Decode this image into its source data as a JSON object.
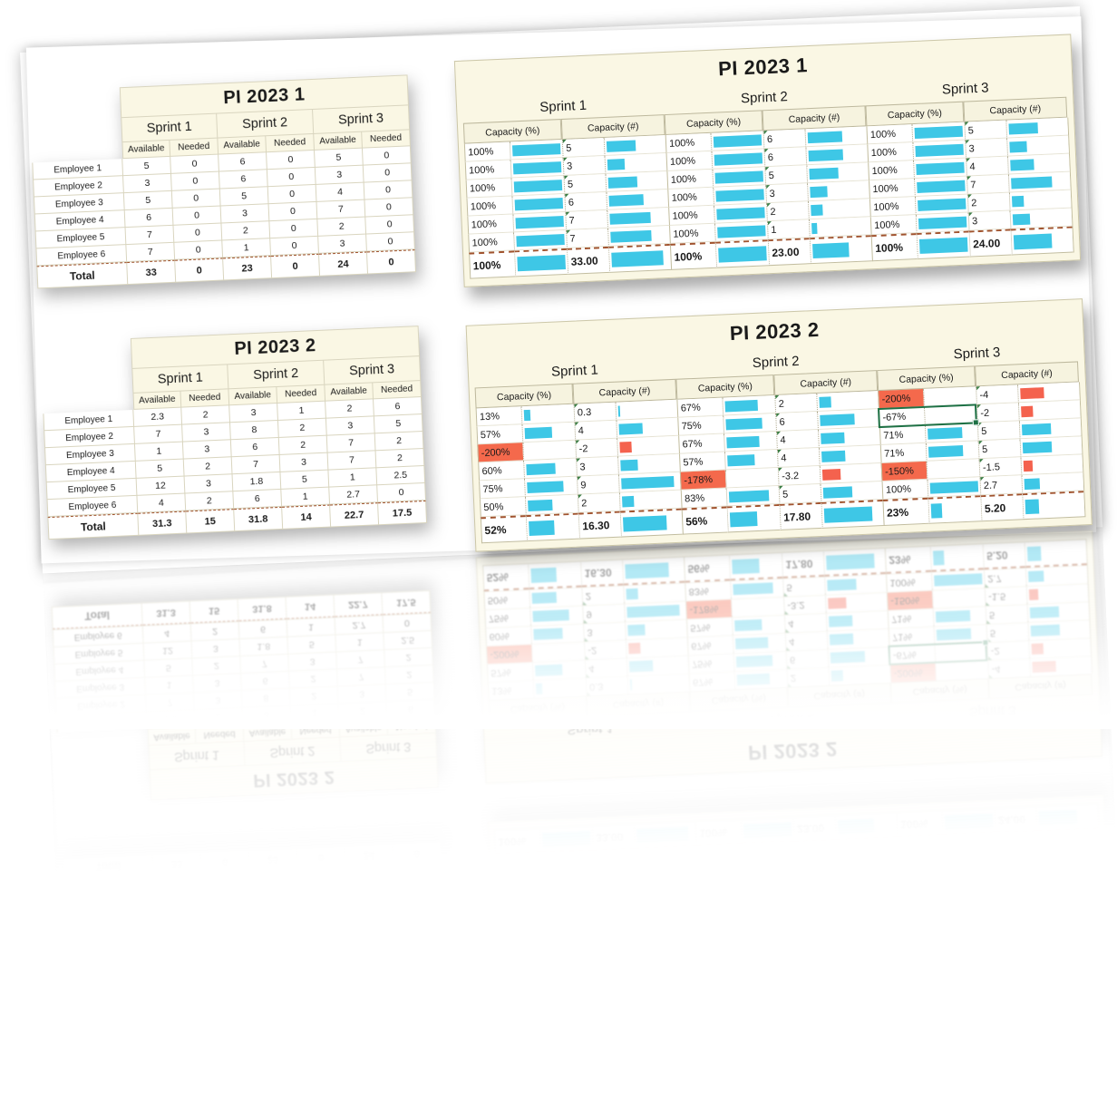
{
  "colors": {
    "bar_positive": "#3EC7E6",
    "bar_negative": "#F4624E",
    "negative_fill": "#F4694C",
    "selection_green": "#1E7145"
  },
  "panels": [
    {
      "kind": "plan",
      "title": "PI 2023 1",
      "sprints": [
        "Sprint 1",
        "Sprint 2",
        "Sprint 3"
      ],
      "subheaders": [
        "Available",
        "Needed"
      ],
      "employees": [
        "Employee 1",
        "Employee 2",
        "Employee 3",
        "Employee 4",
        "Employee 5",
        "Employee 6"
      ],
      "rows": [
        [
          "5",
          "0",
          "6",
          "0",
          "5",
          "0"
        ],
        [
          "3",
          "0",
          "6",
          "0",
          "3",
          "0"
        ],
        [
          "5",
          "0",
          "5",
          "0",
          "4",
          "0"
        ],
        [
          "6",
          "0",
          "3",
          "0",
          "7",
          "0"
        ],
        [
          "7",
          "0",
          "2",
          "0",
          "2",
          "0"
        ],
        [
          "7",
          "0",
          "1",
          "0",
          "3",
          "0"
        ]
      ],
      "total_label": "Total",
      "totals": [
        "33",
        "0",
        "23",
        "0",
        "24",
        "0"
      ]
    },
    {
      "kind": "capacity",
      "title": "PI 2023 1",
      "sprints": [
        "Sprint 1",
        "Sprint 2",
        "Sprint 3"
      ],
      "subheaders": [
        "Capacity (%)",
        "Capacity (#)"
      ],
      "rows": [
        [
          [
            "100%",
            "5"
          ],
          [
            "100%",
            "6"
          ],
          [
            "100%",
            "5"
          ]
        ],
        [
          [
            "100%",
            "3"
          ],
          [
            "100%",
            "6"
          ],
          [
            "100%",
            "3"
          ]
        ],
        [
          [
            "100%",
            "5"
          ],
          [
            "100%",
            "5"
          ],
          [
            "100%",
            "4"
          ]
        ],
        [
          [
            "100%",
            "6"
          ],
          [
            "100%",
            "3"
          ],
          [
            "100%",
            "7"
          ]
        ],
        [
          [
            "100%",
            "7"
          ],
          [
            "100%",
            "2"
          ],
          [
            "100%",
            "2"
          ]
        ],
        [
          [
            "100%",
            "7"
          ],
          [
            "100%",
            "1"
          ],
          [
            "100%",
            "3"
          ]
        ]
      ],
      "totals": [
        [
          "100%",
          "33.00"
        ],
        [
          "100%",
          "23.00"
        ],
        [
          "100%",
          "24.00"
        ]
      ]
    },
    {
      "kind": "plan",
      "title": "PI 2023 2",
      "sprints": [
        "Sprint 1",
        "Sprint 2",
        "Sprint 3"
      ],
      "subheaders": [
        "Available",
        "Needed"
      ],
      "employees": [
        "Employee 1",
        "Employee 2",
        "Employee 3",
        "Employee 4",
        "Employee 5",
        "Employee 6"
      ],
      "rows": [
        [
          "2.3",
          "2",
          "3",
          "1",
          "2",
          "6"
        ],
        [
          "7",
          "3",
          "8",
          "2",
          "3",
          "5"
        ],
        [
          "1",
          "3",
          "6",
          "2",
          "7",
          "2"
        ],
        [
          "5",
          "2",
          "7",
          "3",
          "7",
          "2"
        ],
        [
          "12",
          "3",
          "1.8",
          "5",
          "1",
          "2.5"
        ],
        [
          "4",
          "2",
          "6",
          "1",
          "2.7",
          "0"
        ]
      ],
      "total_label": "Total",
      "totals": [
        "31.3",
        "15",
        "31.8",
        "14",
        "22.7",
        "17.5"
      ]
    },
    {
      "kind": "capacity",
      "title": "PI 2023 2",
      "sprints": [
        "Sprint 1",
        "Sprint 2",
        "Sprint 3"
      ],
      "subheaders": [
        "Capacity (%)",
        "Capacity (#)"
      ],
      "rows": [
        [
          [
            "13%",
            "0.3"
          ],
          [
            "67%",
            "2"
          ],
          [
            "-200%",
            "-4"
          ]
        ],
        [
          [
            "57%",
            "4"
          ],
          [
            "75%",
            "6"
          ],
          [
            "-67%",
            "-2"
          ]
        ],
        [
          [
            "-200%",
            "-2"
          ],
          [
            "67%",
            "4"
          ],
          [
            "71%",
            "5"
          ]
        ],
        [
          [
            "60%",
            "3"
          ],
          [
            "57%",
            "4"
          ],
          [
            "71%",
            "5"
          ]
        ],
        [
          [
            "75%",
            "9"
          ],
          [
            "-178%",
            "-3.2"
          ],
          [
            "-150%",
            "-1.5"
          ]
        ],
        [
          [
            "50%",
            "2"
          ],
          [
            "83%",
            "5"
          ],
          [
            "100%",
            "2.7"
          ]
        ]
      ],
      "totals": [
        [
          "52%",
          "16.30"
        ],
        [
          "56%",
          "17.80"
        ],
        [
          "23%",
          "5.20"
        ]
      ],
      "selected_cell": {
        "row": 1,
        "sprint": 2
      }
    }
  ]
}
